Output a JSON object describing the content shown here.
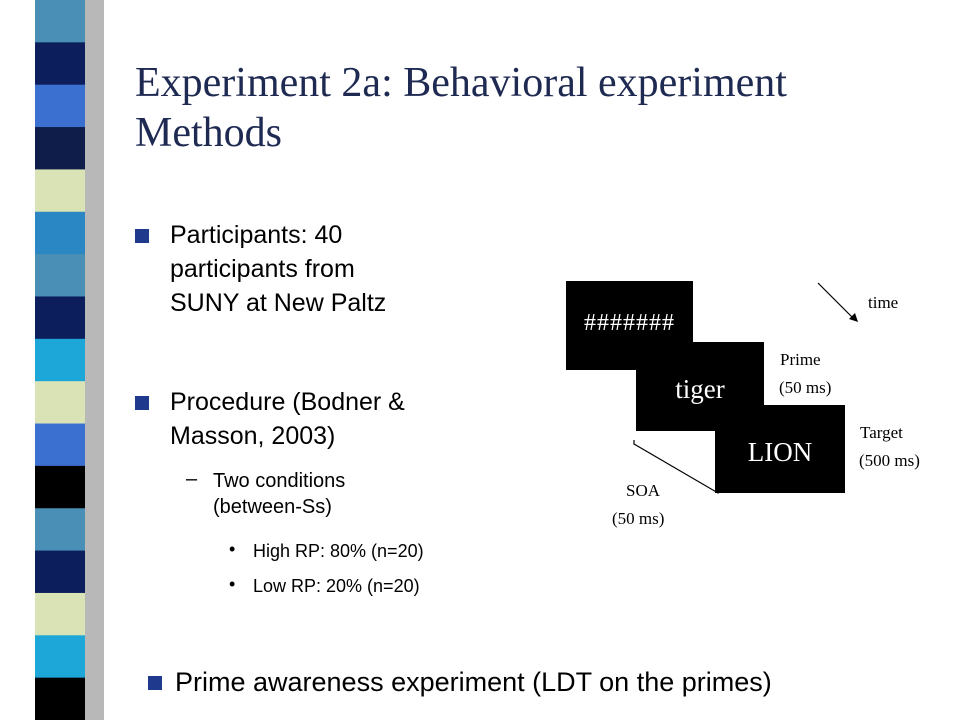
{
  "slide": {
    "title_line1": "Experiment 2a: Behavioral experiment",
    "title_line2": "Methods",
    "participants": {
      "line1": "Participants: 40",
      "line2": "participants from",
      "line3": "SUNY at New Paltz"
    },
    "procedure": {
      "line1": "Procedure (Bodner &",
      "line2": "Masson, 2003)",
      "sub_line1": "Two conditions",
      "sub_line2": "(between-Ss)",
      "items": [
        "High RP: 80% (n=20)",
        "Low RP: 20% (n=20)"
      ]
    },
    "footer_bullet": "Prime awareness experiment (LDT on the primes)"
  },
  "diagram": {
    "mask_text": "#######",
    "prime_text": "tiger",
    "target_text": "LION",
    "time_label": "time",
    "prime_label": "Prime",
    "prime_duration": "(50 ms)",
    "target_label": "Target",
    "target_duration": "(500 ms)",
    "soa_label": "SOA",
    "soa_duration": "(50 ms)"
  },
  "colors": {
    "title": "#1f2a52",
    "bullet": "#1f3a8c",
    "stripe": [
      "#4a8fb5",
      "#0d1e5c",
      "#3b6fd0",
      "#0f1d4a",
      "#d9e3b5",
      "#2a87c4",
      "#4a8fb5",
      "#0d1e5c",
      "#1da7d8",
      "#d9e3b5",
      "#3b6fd0",
      "#000000",
      "#4a8fb5",
      "#0d1e5c",
      "#d9e3b5",
      "#1da7d8",
      "#000000"
    ]
  }
}
